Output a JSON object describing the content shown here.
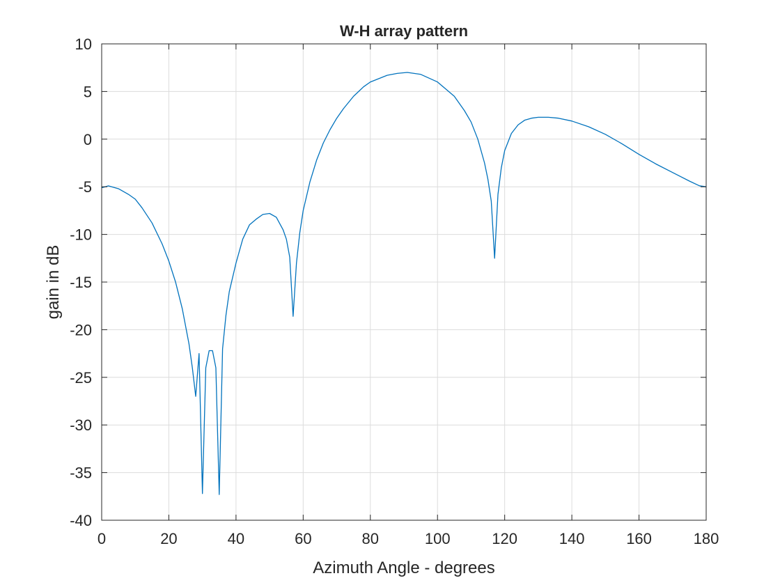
{
  "chart_data": {
    "type": "line",
    "title": "W-H array pattern",
    "xlabel": "Azimuth Angle - degrees",
    "ylabel": "gain in dB",
    "xlim": [
      0,
      180
    ],
    "ylim": [
      -40,
      10
    ],
    "xticks": [
      "0",
      "20",
      "40",
      "60",
      "80",
      "100",
      "120",
      "140",
      "160",
      "180"
    ],
    "yticks": [
      "10",
      "5",
      "0",
      "-5",
      "-10",
      "-15",
      "-20",
      "-25",
      "-30",
      "-35",
      "-40"
    ],
    "grid": true,
    "series_color": "#0072BD",
    "series": [
      {
        "x": [
          0,
          2,
          5,
          8,
          10,
          12,
          15,
          18,
          20,
          22,
          24,
          26,
          27,
          28,
          29,
          30,
          31,
          32,
          33,
          34,
          35,
          36,
          37,
          38,
          40,
          42,
          44,
          46,
          48,
          50,
          52,
          54,
          55,
          56,
          57,
          58,
          59,
          60,
          62,
          64,
          66,
          68,
          70,
          72,
          75,
          78,
          80,
          85,
          88,
          91,
          95,
          100,
          105,
          108,
          110,
          112,
          114,
          115,
          116,
          117,
          118,
          119,
          120,
          122,
          124,
          126,
          128,
          130,
          133,
          136,
          140,
          145,
          150,
          155,
          160,
          165,
          170,
          175,
          178,
          180
        ],
        "y": [
          -5.1,
          -4.9,
          -5.2,
          -5.8,
          -6.3,
          -7.2,
          -8.8,
          -11.0,
          -12.8,
          -15.0,
          -17.8,
          -21.5,
          -24.0,
          -27.0,
          -22.5,
          -37.2,
          -24.0,
          -22.2,
          -22.2,
          -24.0,
          -37.3,
          -22.0,
          -18.5,
          -16.0,
          -13.0,
          -10.5,
          -9.0,
          -8.4,
          -7.9,
          -7.8,
          -8.2,
          -9.5,
          -10.5,
          -12.4,
          -18.6,
          -13.0,
          -9.8,
          -7.5,
          -4.5,
          -2.2,
          -0.4,
          1.0,
          2.2,
          3.2,
          4.5,
          5.5,
          6.0,
          6.7,
          6.9,
          7.0,
          6.8,
          6.0,
          4.5,
          3.0,
          1.8,
          0.0,
          -2.5,
          -4.2,
          -6.5,
          -12.5,
          -5.8,
          -3.0,
          -1.2,
          0.6,
          1.5,
          2.0,
          2.2,
          2.3,
          2.3,
          2.2,
          1.9,
          1.3,
          0.5,
          -0.5,
          -1.6,
          -2.6,
          -3.5,
          -4.4,
          -4.9,
          -5.0
        ]
      }
    ]
  }
}
